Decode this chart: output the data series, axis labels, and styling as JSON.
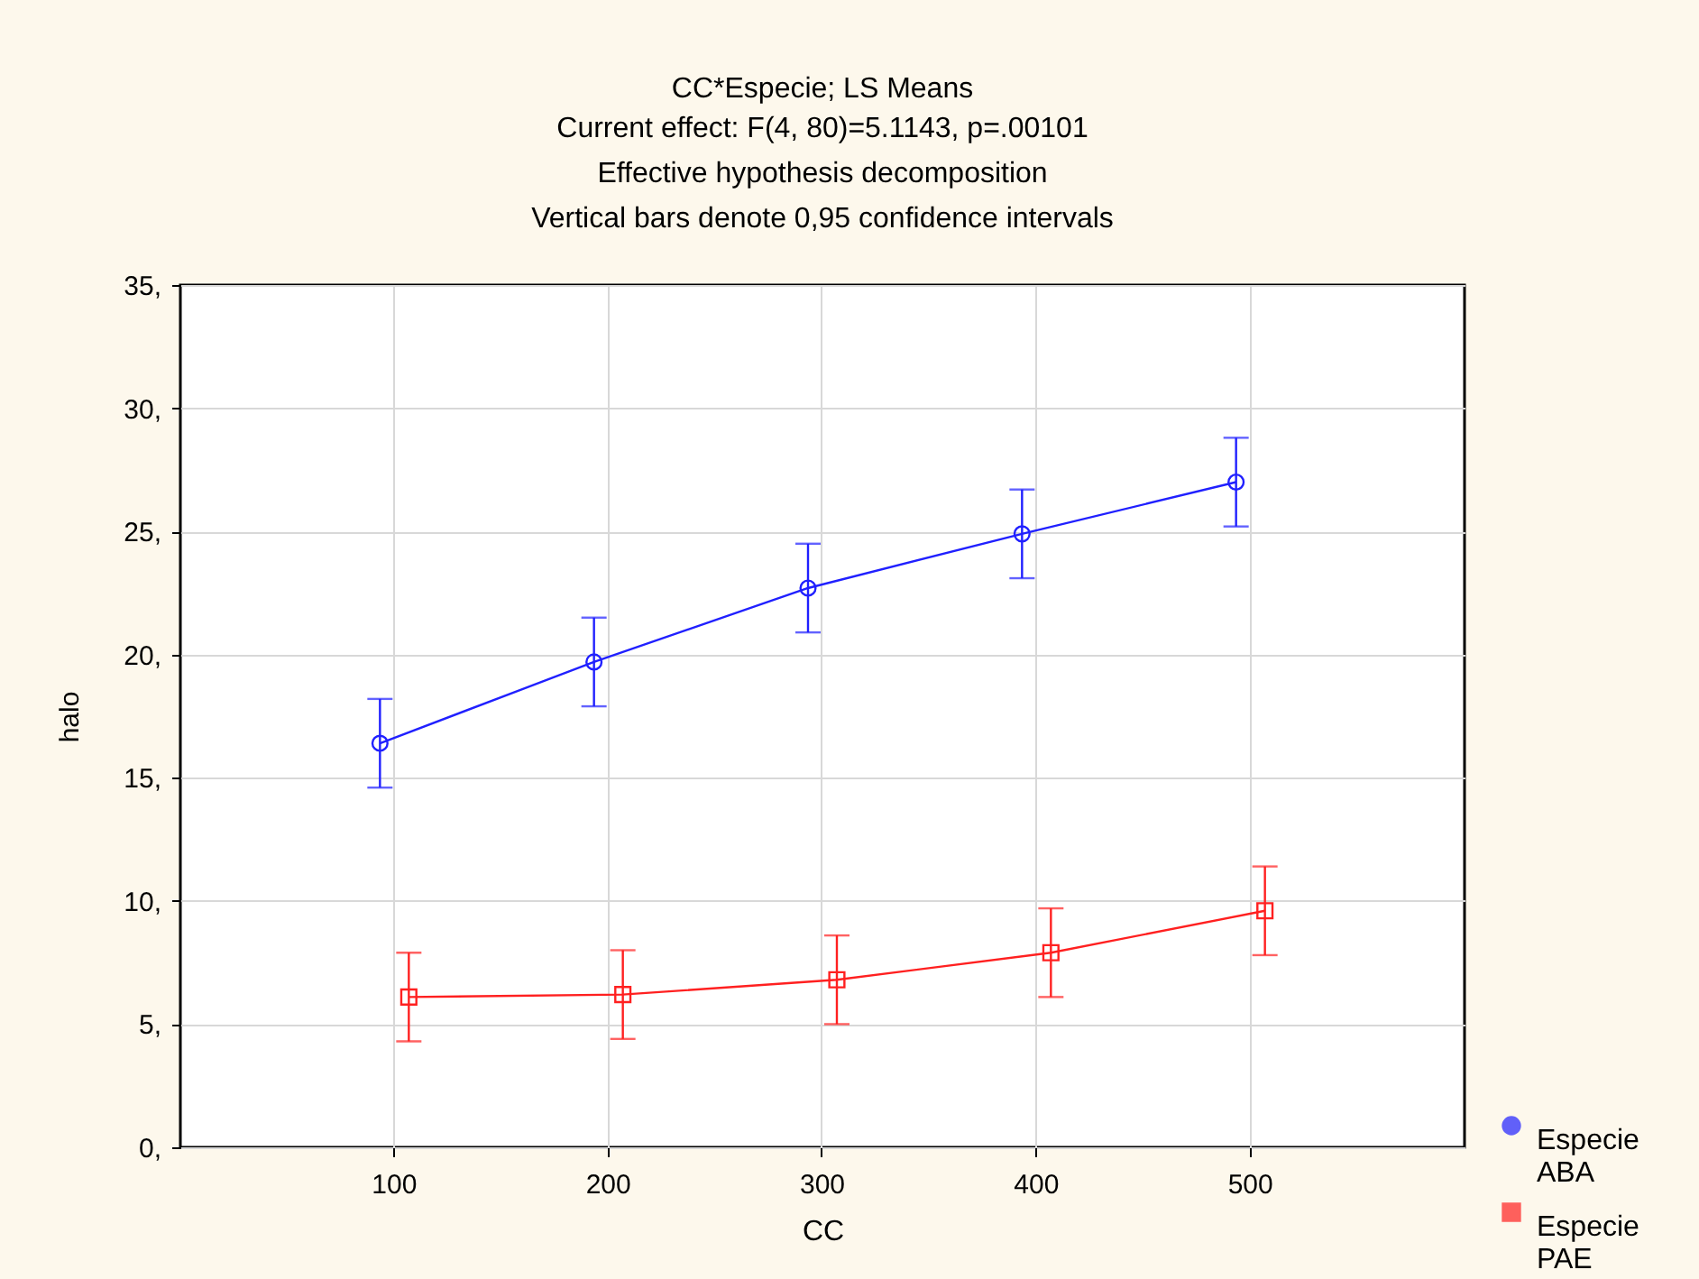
{
  "chart_data": {
    "type": "line",
    "title": "CC*Especie; LS Means",
    "subtitle": "Current effect: F(4, 80)=5.1143, p=.00101\nEffective hypothesis decomposition\nVertical bars denote 0,95 confidence intervals",
    "xlabel": "CC",
    "ylabel": "halo",
    "categories": [
      "100",
      "200",
      "300",
      "400",
      "500"
    ],
    "series": [
      {
        "name": "Especie ABA",
        "color": "#2020ff",
        "marker": "circle",
        "values": [
          16.4,
          19.7,
          22.7,
          24.9,
          27.0
        ],
        "errors": [
          1.8,
          1.8,
          1.8,
          1.8,
          1.8
        ]
      },
      {
        "name": "Especie PAE",
        "color": "#ff2020",
        "marker": "square",
        "values": [
          6.1,
          6.2,
          6.8,
          7.9,
          9.6
        ],
        "errors": [
          1.8,
          1.8,
          1.8,
          1.8,
          1.8
        ]
      }
    ],
    "ylim": [
      0,
      35
    ],
    "yticks": [
      {
        "value": 0,
        "label": "0,"
      },
      {
        "value": 5,
        "label": "5,"
      },
      {
        "value": 10,
        "label": "10,"
      },
      {
        "value": 15,
        "label": "15,"
      },
      {
        "value": 20,
        "label": "20,"
      },
      {
        "value": 25,
        "label": "25,"
      },
      {
        "value": 30,
        "label": "30,"
      },
      {
        "value": 35,
        "label": "35,"
      }
    ],
    "grid": true,
    "legend": "bottom right"
  }
}
